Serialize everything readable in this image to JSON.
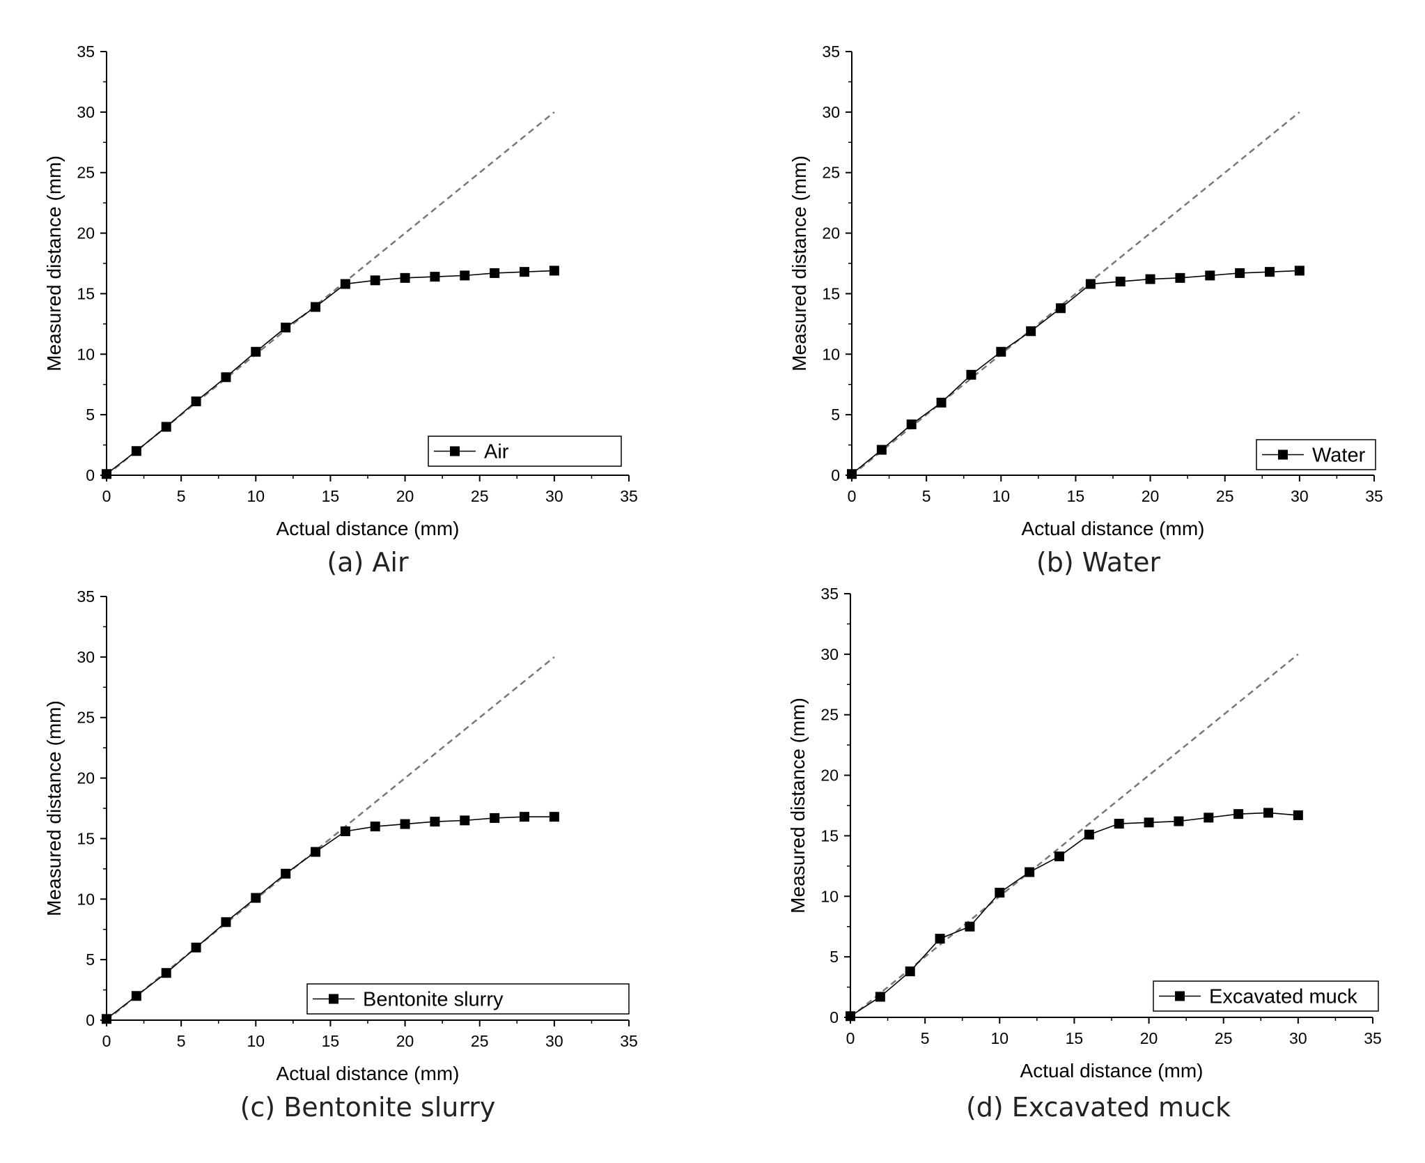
{
  "figure": {
    "background": "#ffffff"
  },
  "style": {
    "series_color": "#000000",
    "reference_color": "#777777"
  },
  "chart_data": [
    {
      "id": "a",
      "type": "line",
      "caption": "(a) Air",
      "xlabel": "Actual distance (mm)",
      "ylabel": "Measured distance (mm)",
      "xlim": [
        0,
        35
      ],
      "ylim": [
        0,
        35
      ],
      "xticks": [
        "0",
        "5",
        "10",
        "15",
        "20",
        "25",
        "30",
        "35"
      ],
      "yticks": [
        "0",
        "5",
        "10",
        "15",
        "20",
        "25",
        "30",
        "35"
      ],
      "grid": false,
      "legend_position": "bottom-right",
      "reference": {
        "x": [
          0,
          30
        ],
        "y": [
          0,
          30
        ],
        "style": "dashed"
      },
      "series": [
        {
          "name": "Air",
          "marker": "square",
          "x": [
            0,
            2,
            4,
            6,
            8,
            10,
            12,
            14,
            16,
            18,
            20,
            22,
            24,
            26,
            28,
            30
          ],
          "y": [
            0.1,
            2.0,
            4.0,
            6.1,
            8.1,
            10.2,
            12.2,
            13.9,
            15.8,
            16.1,
            16.3,
            16.4,
            16.5,
            16.7,
            16.8,
            16.9
          ]
        }
      ]
    },
    {
      "id": "b",
      "type": "line",
      "caption": "(b) Water",
      "xlabel": "Actual distance (mm)",
      "ylabel": "Measured distance (mm)",
      "xlim": [
        0,
        35
      ],
      "ylim": [
        0,
        35
      ],
      "xticks": [
        "0",
        "5",
        "10",
        "15",
        "20",
        "25",
        "30",
        "35"
      ],
      "yticks": [
        "0",
        "5",
        "10",
        "15",
        "20",
        "25",
        "30",
        "35"
      ],
      "grid": false,
      "legend_position": "bottom-right",
      "reference": {
        "x": [
          0,
          30
        ],
        "y": [
          0,
          30
        ],
        "style": "dashed"
      },
      "series": [
        {
          "name": "Water",
          "marker": "square",
          "x": [
            0,
            2,
            4,
            6,
            8,
            10,
            12,
            14,
            16,
            18,
            20,
            22,
            24,
            26,
            28,
            30
          ],
          "y": [
            0.1,
            2.1,
            4.2,
            6.0,
            8.3,
            10.2,
            11.9,
            13.8,
            15.8,
            16.0,
            16.2,
            16.3,
            16.5,
            16.7,
            16.8,
            16.9
          ]
        }
      ]
    },
    {
      "id": "c",
      "type": "line",
      "caption": "(c) Bentonite slurry",
      "xlabel": "Actual distance (mm)",
      "ylabel": "Measured distance (mm)",
      "xlim": [
        0,
        35
      ],
      "ylim": [
        0,
        35
      ],
      "xticks": [
        "0",
        "5",
        "10",
        "15",
        "20",
        "25",
        "30",
        "35"
      ],
      "yticks": [
        "0",
        "5",
        "10",
        "15",
        "20",
        "25",
        "30",
        "35"
      ],
      "grid": false,
      "legend_position": "bottom-right",
      "reference": {
        "x": [
          0,
          30
        ],
        "y": [
          0,
          30
        ],
        "style": "dashed"
      },
      "series": [
        {
          "name": "Bentonite slurry",
          "marker": "square",
          "x": [
            0,
            2,
            4,
            6,
            8,
            10,
            12,
            14,
            16,
            18,
            20,
            22,
            24,
            26,
            28,
            30
          ],
          "y": [
            0.1,
            2.0,
            3.9,
            6.0,
            8.1,
            10.1,
            12.1,
            13.9,
            15.6,
            16.0,
            16.2,
            16.4,
            16.5,
            16.7,
            16.8,
            16.8
          ]
        }
      ]
    },
    {
      "id": "d",
      "type": "line",
      "caption": "(d) Excavated muck",
      "xlabel": "Actual distance (mm)",
      "ylabel": "Measured distance (mm)",
      "xlim": [
        0,
        35
      ],
      "ylim": [
        0,
        35
      ],
      "xticks": [
        "0",
        "5",
        "10",
        "15",
        "20",
        "25",
        "30",
        "35"
      ],
      "yticks": [
        "0",
        "5",
        "10",
        "15",
        "20",
        "25",
        "30",
        "35"
      ],
      "grid": false,
      "legend_position": "bottom-right",
      "reference": {
        "x": [
          0,
          30
        ],
        "y": [
          0,
          30
        ],
        "style": "dashed"
      },
      "series": [
        {
          "name": "Excavated muck",
          "marker": "square",
          "x": [
            0,
            2,
            4,
            6,
            8,
            10,
            12,
            14,
            16,
            18,
            20,
            22,
            24,
            26,
            28,
            30
          ],
          "y": [
            0.1,
            1.7,
            3.8,
            6.5,
            7.5,
            10.3,
            12.0,
            13.3,
            15.1,
            16.0,
            16.1,
            16.2,
            16.5,
            16.8,
            16.9,
            16.7
          ]
        }
      ]
    }
  ]
}
